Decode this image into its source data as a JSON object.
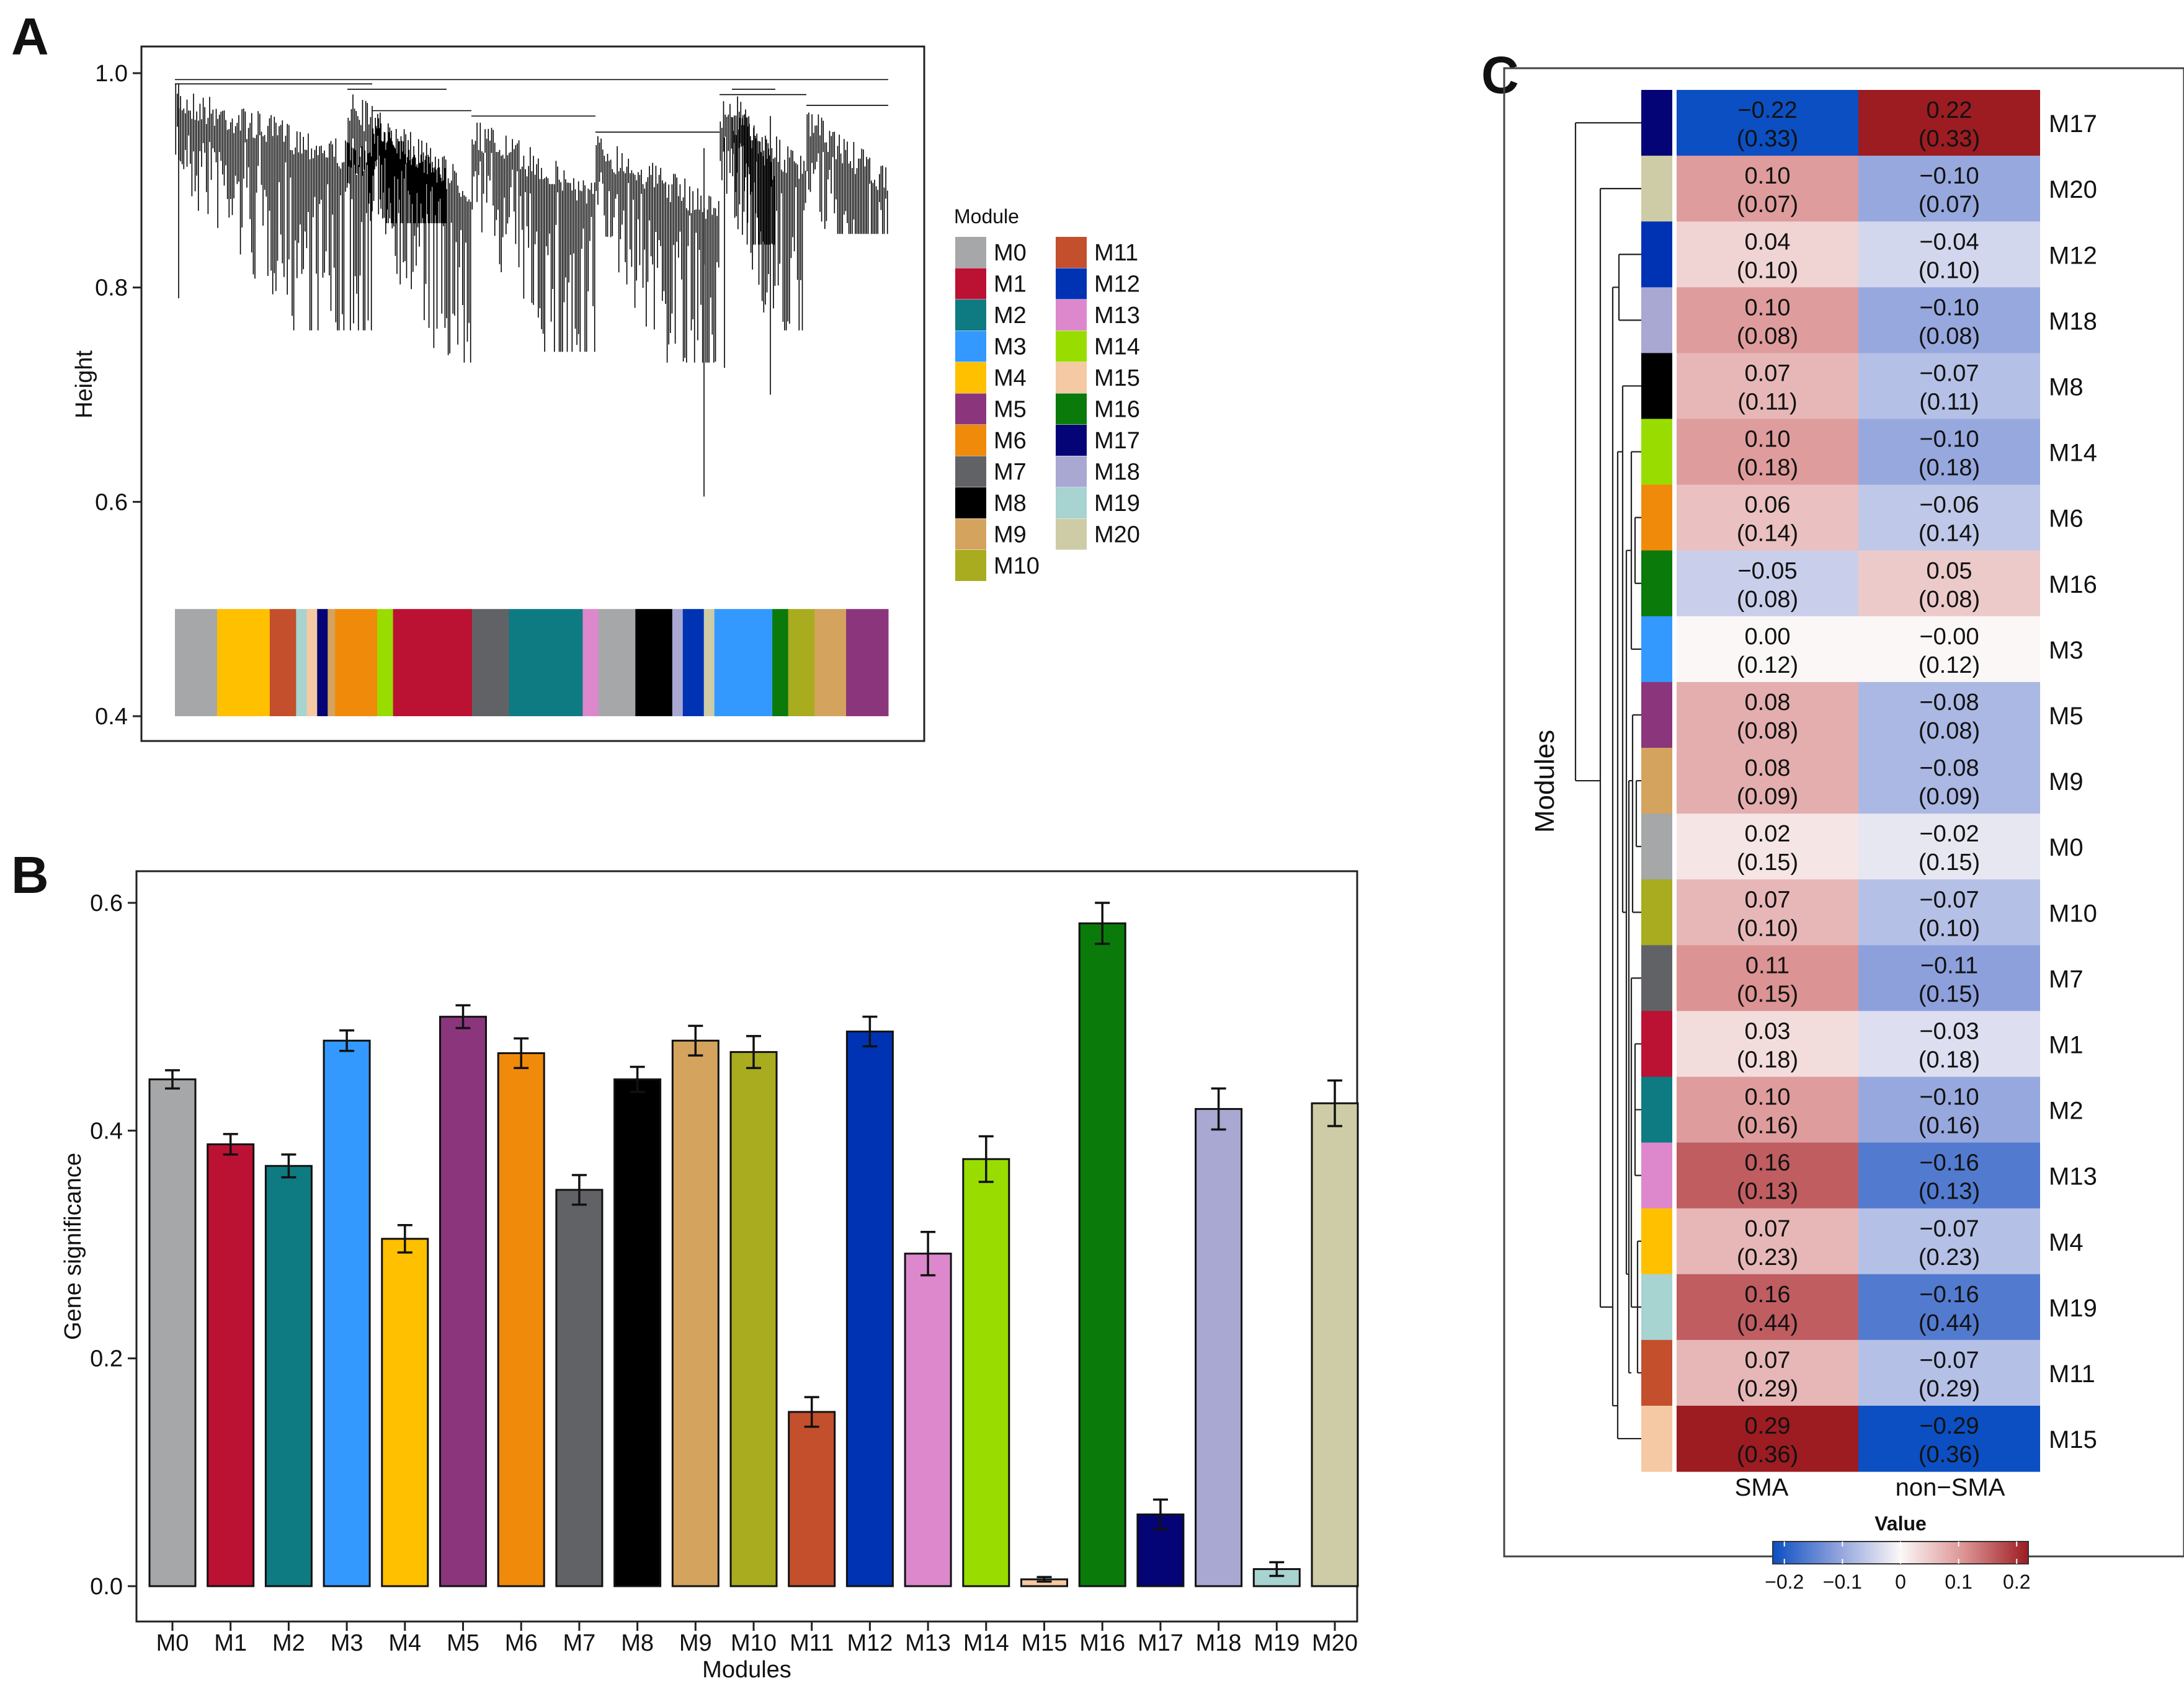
{
  "panels": {
    "a": "A",
    "b": "B",
    "c": "C"
  },
  "module_colors": {
    "M0": "#a5a7a9",
    "M1": "#bb1133",
    "M2": "#0e7b82",
    "M3": "#3399ff",
    "M4": "#ffc000",
    "M5": "#8b367c",
    "M6": "#f08a0a",
    "M7": "#616266",
    "M8": "#000000",
    "M9": "#d4a35e",
    "M10": "#a9ac1e",
    "M11": "#c34f2c",
    "M12": "#0033b3",
    "M13": "#dd88cc",
    "M14": "#99dd00",
    "M15": "#f5c9a3",
    "M16": "#0a7a0a",
    "M17": "#040477",
    "M18": "#a8a8d2",
    "M19": "#a7d3d1",
    "M20": "#cdcca6"
  },
  "chart_data": [
    {
      "id": "A",
      "type": "dendrogram",
      "title": "",
      "ylabel": "Height",
      "ylim": [
        0.4,
        1.0
      ],
      "yticks": [
        "0.4",
        "0.6",
        "0.8",
        "1.0"
      ],
      "legend_title": "Module",
      "legend": [
        "M0",
        "M1",
        "M2",
        "M3",
        "M4",
        "M5",
        "M6",
        "M7",
        "M8",
        "M9",
        "M10",
        "M11",
        "M12",
        "M13",
        "M14",
        "M15",
        "M16",
        "M17",
        "M18",
        "M19",
        "M20"
      ],
      "module_strip": [
        {
          "module": "M0",
          "weight": 4
        },
        {
          "module": "M4",
          "weight": 5
        },
        {
          "module": "M11",
          "weight": 2.5
        },
        {
          "module": "M19",
          "weight": 1
        },
        {
          "module": "M15",
          "weight": 1
        },
        {
          "module": "M17",
          "weight": 1
        },
        {
          "module": "M9",
          "weight": 0.7
        },
        {
          "module": "M6",
          "weight": 4
        },
        {
          "module": "M14",
          "weight": 1.5
        },
        {
          "module": "M1",
          "weight": 7.5
        },
        {
          "module": "M7",
          "weight": 3.5
        },
        {
          "module": "M2",
          "weight": 7
        },
        {
          "module": "M13",
          "weight": 1.5
        },
        {
          "module": "M0",
          "weight": 3.5
        },
        {
          "module": "M8",
          "weight": 3.5
        },
        {
          "module": "M18",
          "weight": 1
        },
        {
          "module": "M12",
          "weight": 2
        },
        {
          "module": "M20",
          "weight": 1
        },
        {
          "module": "M3",
          "weight": 5.5
        },
        {
          "module": "M16",
          "weight": 1.5
        },
        {
          "module": "M10",
          "weight": 2.5
        },
        {
          "module": "M9",
          "weight": 3
        },
        {
          "module": "M5",
          "weight": 4
        }
      ]
    },
    {
      "id": "B",
      "type": "bar",
      "xlabel": "Modules",
      "ylabel": "Gene significance",
      "ylim": [
        0,
        0.6
      ],
      "yticks": [
        "0.0",
        "0.2",
        "0.4",
        "0.6"
      ],
      "categories": [
        "M0",
        "M1",
        "M2",
        "M3",
        "M4",
        "M5",
        "M6",
        "M7",
        "M8",
        "M9",
        "M10",
        "M11",
        "M12",
        "M13",
        "M14",
        "M15",
        "M16",
        "M17",
        "M18",
        "M19",
        "M20"
      ],
      "values": [
        0.445,
        0.388,
        0.369,
        0.479,
        0.305,
        0.5,
        0.468,
        0.348,
        0.445,
        0.479,
        0.469,
        0.153,
        0.487,
        0.292,
        0.375,
        0.006,
        0.582,
        0.063,
        0.419,
        0.015,
        0.424
      ],
      "errors": [
        0.008,
        0.009,
        0.01,
        0.009,
        0.012,
        0.01,
        0.013,
        0.013,
        0.011,
        0.013,
        0.014,
        0.013,
        0.013,
        0.019,
        0.02,
        0.002,
        0.018,
        0.013,
        0.018,
        0.006,
        0.02
      ]
    },
    {
      "id": "C",
      "type": "heatmap",
      "ylabel": "Modules",
      "columns": [
        "SMA",
        "non−SMA"
      ],
      "colorbar_title": "Value",
      "colorbar_ticks": [
        "−0.2",
        "−0.1",
        "0",
        "0.1",
        "0.2"
      ],
      "range": [
        -0.22,
        0.22
      ],
      "rows": [
        {
          "module": "M17",
          "sma": -0.22,
          "sma_text": "−0.22",
          "non": 0.22,
          "non_text": "0.22",
          "p": "(0.33)"
        },
        {
          "module": "M20",
          "sma": 0.1,
          "sma_text": "0.10",
          "non": -0.1,
          "non_text": "−0.10",
          "p": "(0.07)"
        },
        {
          "module": "M12",
          "sma": 0.04,
          "sma_text": "0.04",
          "non": -0.04,
          "non_text": "−0.04",
          "p": "(0.10)"
        },
        {
          "module": "M18",
          "sma": 0.1,
          "sma_text": "0.10",
          "non": -0.1,
          "non_text": "−0.10",
          "p": "(0.08)"
        },
        {
          "module": "M8",
          "sma": 0.07,
          "sma_text": "0.07",
          "non": -0.07,
          "non_text": "−0.07",
          "p": "(0.11)"
        },
        {
          "module": "M14",
          "sma": 0.1,
          "sma_text": "0.10",
          "non": -0.1,
          "non_text": "−0.10",
          "p": "(0.18)"
        },
        {
          "module": "M6",
          "sma": 0.06,
          "sma_text": "0.06",
          "non": -0.06,
          "non_text": "−0.06",
          "p": "(0.14)"
        },
        {
          "module": "M16",
          "sma": -0.05,
          "sma_text": "−0.05",
          "non": 0.05,
          "non_text": "0.05",
          "p": "(0.08)"
        },
        {
          "module": "M3",
          "sma": 0.0,
          "sma_text": "0.00",
          "non": -0.0,
          "non_text": "−0.00",
          "p": "(0.12)"
        },
        {
          "module": "M5",
          "sma": 0.08,
          "sma_text": "0.08",
          "non": -0.08,
          "non_text": "−0.08",
          "p": "(0.08)"
        },
        {
          "module": "M9",
          "sma": 0.08,
          "sma_text": "0.08",
          "non": -0.08,
          "non_text": "−0.08",
          "p": "(0.09)"
        },
        {
          "module": "M0",
          "sma": 0.02,
          "sma_text": "0.02",
          "non": -0.02,
          "non_text": "−0.02",
          "p": "(0.15)"
        },
        {
          "module": "M10",
          "sma": 0.07,
          "sma_text": "0.07",
          "non": -0.07,
          "non_text": "−0.07",
          "p": "(0.10)"
        },
        {
          "module": "M7",
          "sma": 0.11,
          "sma_text": "0.11",
          "non": -0.11,
          "non_text": "−0.11",
          "p": "(0.15)"
        },
        {
          "module": "M1",
          "sma": 0.03,
          "sma_text": "0.03",
          "non": -0.03,
          "non_text": "−0.03",
          "p": "(0.18)"
        },
        {
          "module": "M2",
          "sma": 0.1,
          "sma_text": "0.10",
          "non": -0.1,
          "non_text": "−0.10",
          "p": "(0.16)"
        },
        {
          "module": "M13",
          "sma": 0.16,
          "sma_text": "0.16",
          "non": -0.16,
          "non_text": "−0.16",
          "p": "(0.13)"
        },
        {
          "module": "M4",
          "sma": 0.07,
          "sma_text": "0.07",
          "non": -0.07,
          "non_text": "−0.07",
          "p": "(0.23)"
        },
        {
          "module": "M19",
          "sma": 0.16,
          "sma_text": "0.16",
          "non": -0.16,
          "non_text": "−0.16",
          "p": "(0.44)"
        },
        {
          "module": "M11",
          "sma": 0.07,
          "sma_text": "0.07",
          "non": -0.07,
          "non_text": "−0.07",
          "p": "(0.29)"
        },
        {
          "module": "M15",
          "sma": 0.29,
          "sma_text": "0.29",
          "non": -0.29,
          "non_text": "−0.29",
          "p": "(0.36)"
        }
      ]
    }
  ]
}
